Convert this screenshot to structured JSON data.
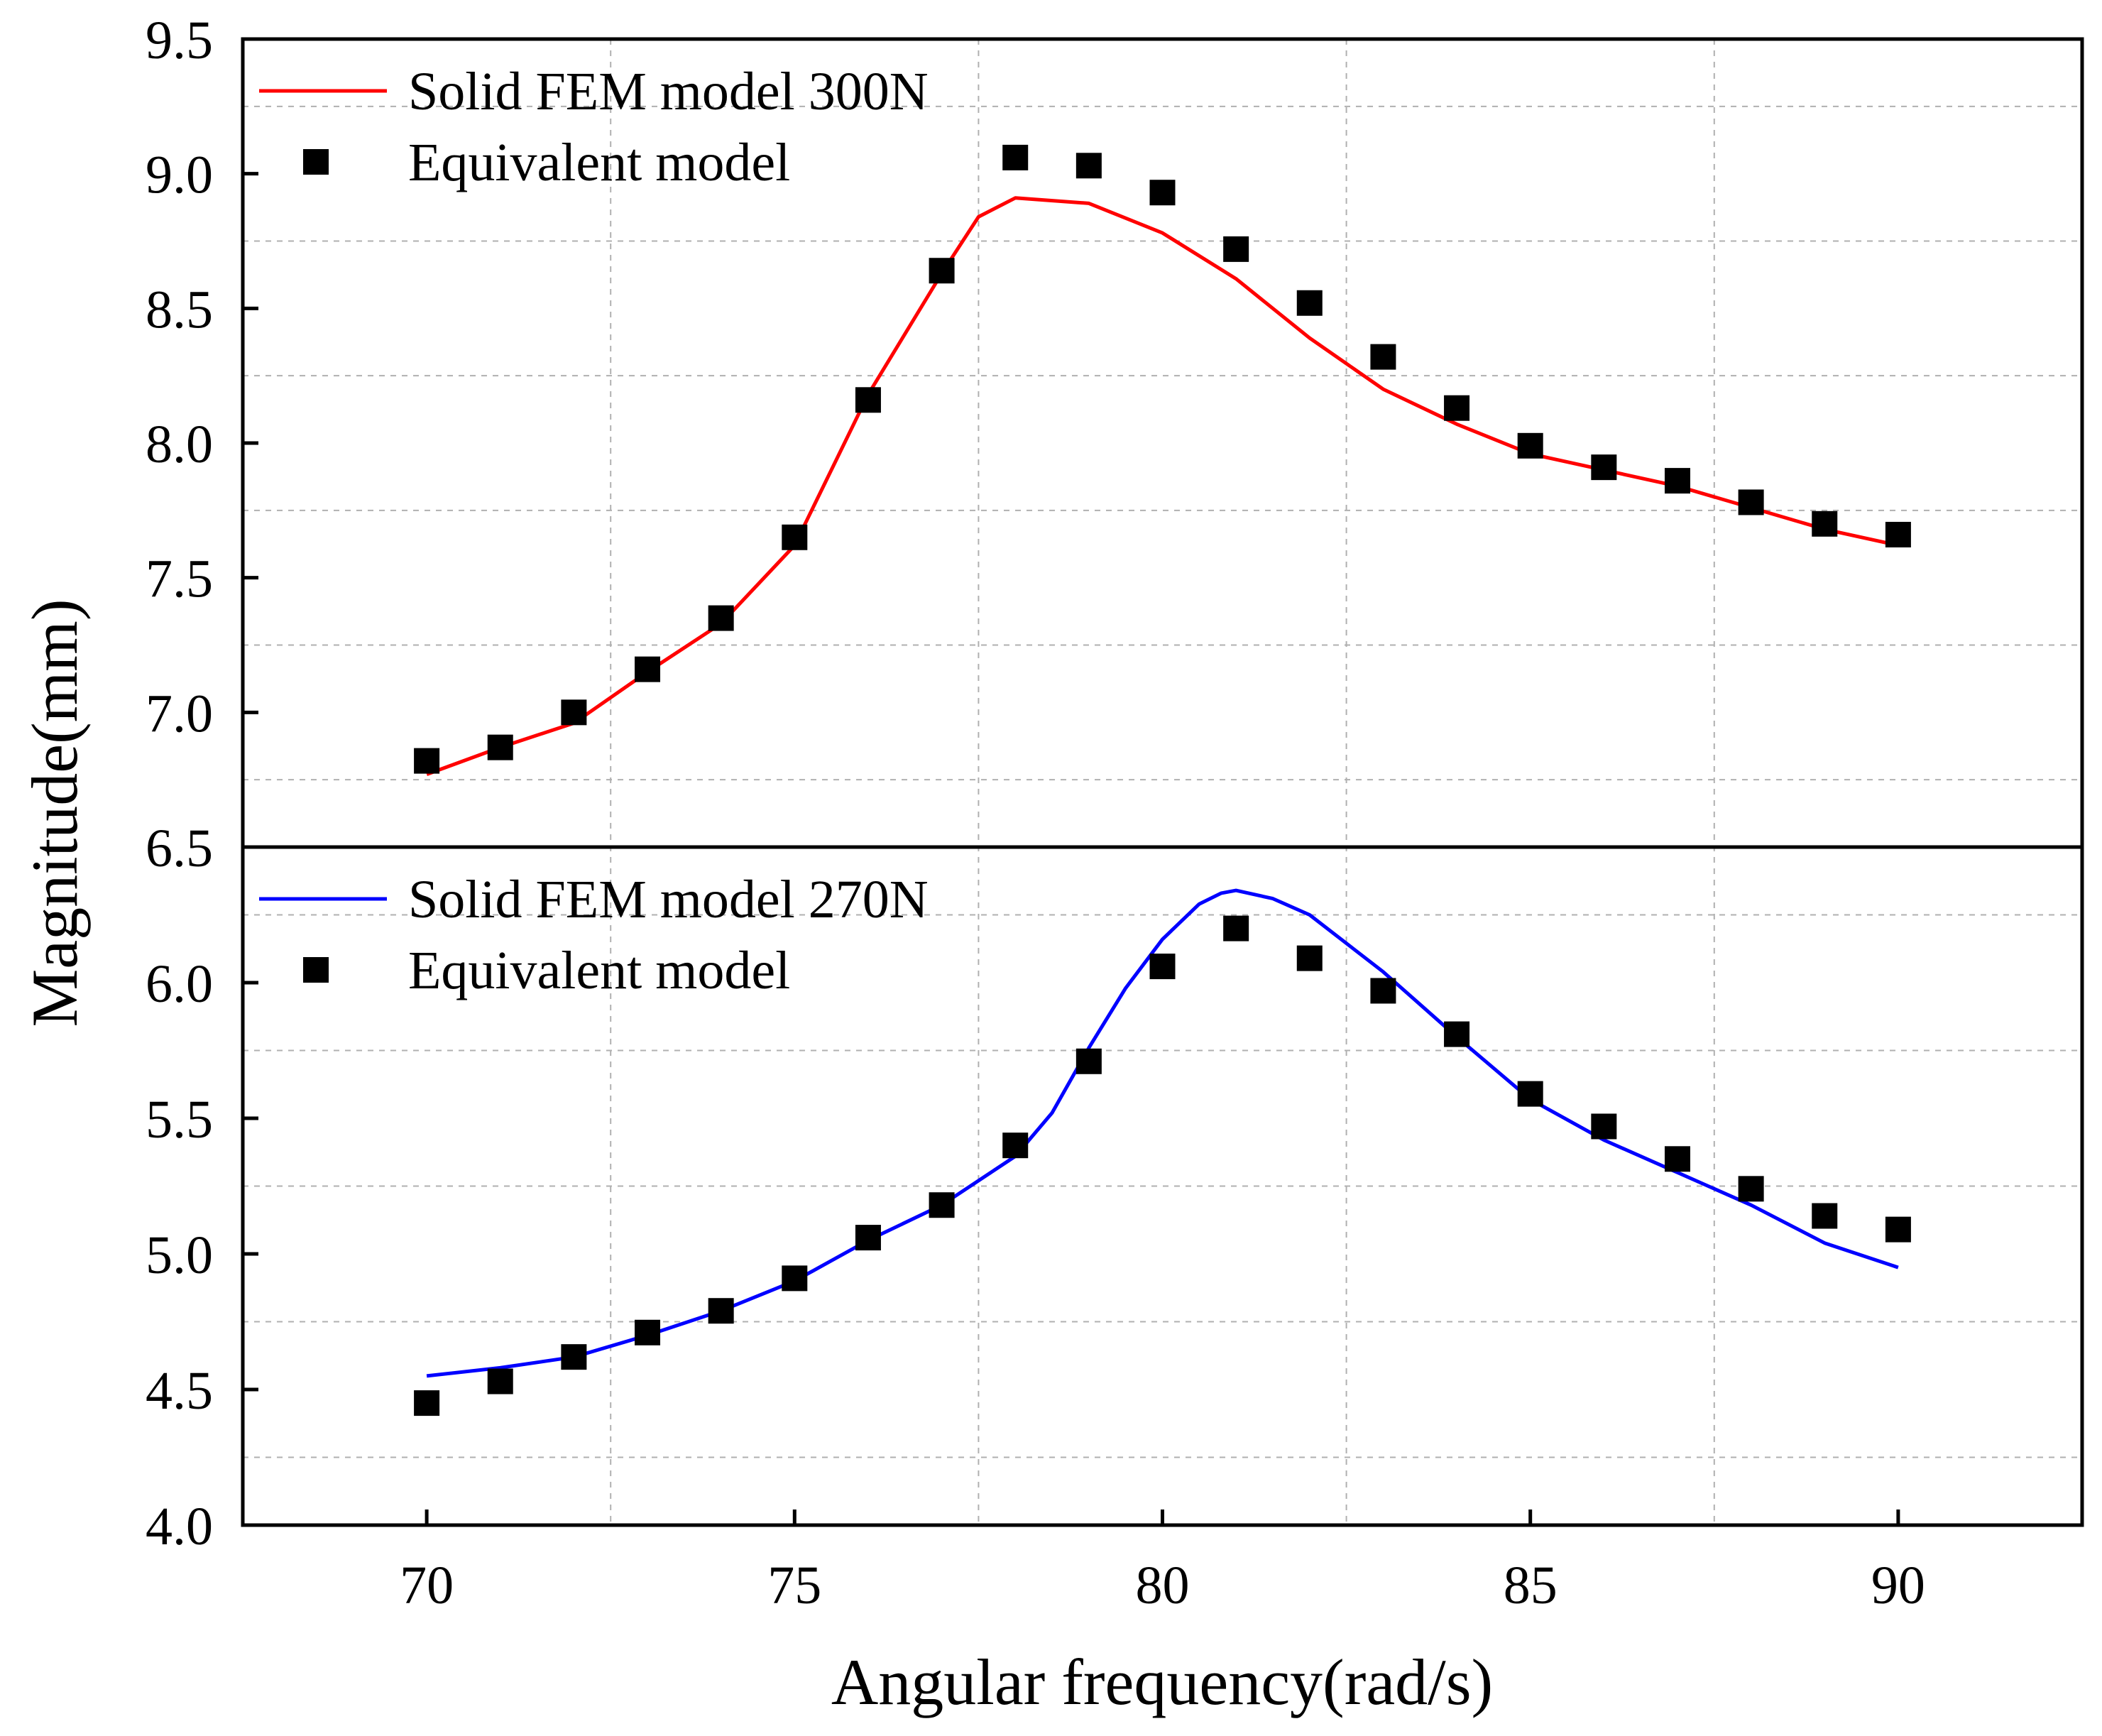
{
  "chart_data": {
    "type": "line",
    "xlabel": "Angular frequency(rad/s)",
    "ylabel": "Magnitude(mm)",
    "xlim": [
      67.5,
      92.5
    ],
    "xticks": [
      70,
      75,
      80,
      85,
      90
    ],
    "xgrid": [
      72.5,
      77.5,
      82.5,
      87.5
    ],
    "grid": true,
    "panels": [
      {
        "name": "upper",
        "ylim": [
          6.5,
          9.5
        ],
        "yticks": [
          "6.5",
          "7.0",
          "7.5",
          "8.0",
          "8.5",
          "9.0",
          "9.5"
        ],
        "legend_position": "top-left",
        "series": [
          {
            "name": "Solid FEM model 300N",
            "kind": "line",
            "color": "#ff0000",
            "x": [
              70,
              71,
              72,
              73,
              74,
              75,
              76,
              77,
              77.5,
              78,
              79,
              80,
              81,
              82,
              83,
              84,
              85,
              86,
              87,
              88,
              89,
              90
            ],
            "y": [
              6.77,
              6.87,
              6.96,
              7.15,
              7.33,
              7.62,
              8.18,
              8.63,
              8.84,
              8.91,
              8.89,
              8.78,
              8.61,
              8.39,
              8.2,
              8.07,
              7.96,
              7.9,
              7.84,
              7.76,
              7.68,
              7.62
            ]
          },
          {
            "name": "Equivalent model",
            "kind": "scatter",
            "color": "#000000",
            "x": [
              70,
              71,
              72,
              73,
              74,
              75,
              76,
              77,
              78,
              79,
              80,
              81,
              82,
              83,
              84,
              85,
              86,
              87,
              88,
              89,
              90
            ],
            "y": [
              6.82,
              6.87,
              7.0,
              7.16,
              7.35,
              7.65,
              8.16,
              8.64,
              9.06,
              9.03,
              8.93,
              8.72,
              8.52,
              8.32,
              8.13,
              7.99,
              7.91,
              7.86,
              7.78,
              7.7,
              7.66
            ]
          }
        ]
      },
      {
        "name": "lower",
        "ylim": [
          4.0,
          6.5
        ],
        "yticks": [
          "4.0",
          "4.5",
          "5.0",
          "5.5",
          "6.0"
        ],
        "legend_position": "top-left",
        "series": [
          {
            "name": "Solid FEM model 270N",
            "kind": "line",
            "color": "#0000ff",
            "x": [
              70,
              71,
              72,
              73,
              74,
              75,
              76,
              77,
              78,
              78.5,
              79,
              79.5,
              80,
              80.5,
              80.8,
              81,
              81.5,
              82,
              83,
              84,
              85,
              86,
              87,
              88,
              89,
              90
            ],
            "y": [
              4.55,
              4.58,
              4.62,
              4.7,
              4.79,
              4.9,
              5.05,
              5.18,
              5.36,
              5.52,
              5.76,
              5.98,
              6.16,
              6.29,
              6.33,
              6.34,
              6.31,
              6.25,
              6.04,
              5.8,
              5.57,
              5.42,
              5.3,
              5.18,
              5.04,
              4.95
            ]
          },
          {
            "name": "Equivalent model",
            "kind": "scatter",
            "color": "#000000",
            "x": [
              70,
              71,
              72,
              73,
              74,
              75,
              76,
              77,
              78,
              79,
              80,
              81,
              82,
              83,
              84,
              85,
              86,
              87,
              88,
              89,
              90
            ],
            "y": [
              4.45,
              4.53,
              4.62,
              4.71,
              4.79,
              4.91,
              5.06,
              5.18,
              5.4,
              5.71,
              6.06,
              6.2,
              6.09,
              5.97,
              5.81,
              5.59,
              5.47,
              5.35,
              5.24,
              5.14,
              5.09
            ]
          }
        ]
      }
    ]
  }
}
